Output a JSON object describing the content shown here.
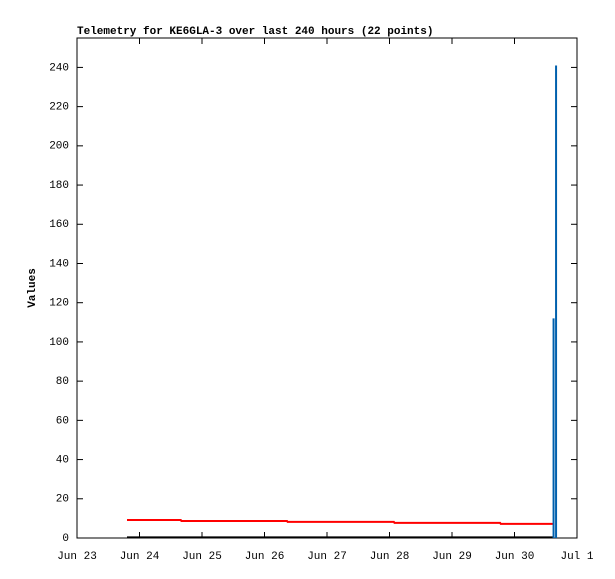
{
  "chart_data": {
    "type": "line",
    "title": "Telemetry for KE6GLA-3 over last 240 hours (22 points)",
    "y_label": "Values",
    "xlim": [
      0,
      8
    ],
    "xticks": [
      {
        "value": 0,
        "label": "Jun 23"
      },
      {
        "value": 1,
        "label": "Jun 24"
      },
      {
        "value": 2,
        "label": "Jun 25"
      },
      {
        "value": 3,
        "label": "Jun 26"
      },
      {
        "value": 4,
        "label": "Jun 27"
      },
      {
        "value": 5,
        "label": "Jun 28"
      },
      {
        "value": 6,
        "label": "Jun 29"
      },
      {
        "value": 7,
        "label": "Jun 30"
      },
      {
        "value": 8,
        "label": "Jul 1"
      }
    ],
    "ylim": [
      0,
      255
    ],
    "yticks": [
      0,
      20,
      40,
      60,
      80,
      100,
      120,
      140,
      160,
      180,
      200,
      220,
      240
    ],
    "series": [
      {
        "color": "#ff0000",
        "style": "lines",
        "x": [
          0.8,
          1.66,
          1.67,
          3.36,
          3.37,
          5.07,
          5.08,
          6.77,
          6.78,
          7.62
        ],
        "values": [
          9.2,
          9.2,
          8.7,
          8.7,
          8.2,
          8.2,
          7.7,
          7.7,
          7.2,
          7.2
        ]
      },
      {
        "color": "#000000",
        "style": "lines",
        "x": [
          0.8,
          7.62
        ],
        "values": [
          0.3,
          0.3
        ]
      },
      {
        "color": "#0060ad",
        "style": "impulses",
        "x": [
          7.625,
          7.665
        ],
        "values": [
          112,
          241
        ]
      }
    ]
  }
}
